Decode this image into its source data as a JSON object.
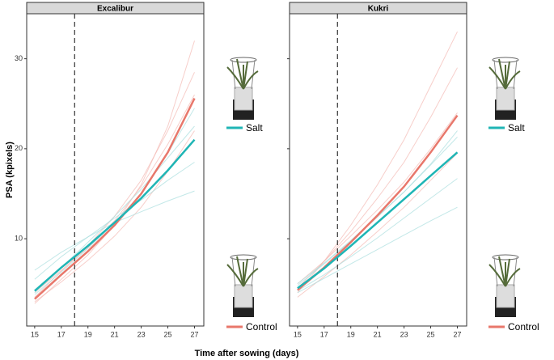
{
  "y_label": "PSA (kpixels)",
  "x_label": "Time after sowing (days)",
  "chart_data": [
    {
      "type": "line",
      "title": "Excalibur",
      "x": [
        15,
        17,
        19,
        21,
        23,
        25,
        27
      ],
      "xlim": [
        14.4,
        27.7
      ],
      "xticks": [
        15,
        17,
        19,
        21,
        23,
        25,
        27
      ],
      "ylim": [
        0.3,
        35
      ],
      "yticks": [
        10,
        20,
        30
      ],
      "vline": 18,
      "series": [
        {
          "name": "Control",
          "color": "#e8776b",
          "values": [
            3.3,
            6.0,
            8.6,
            11.5,
            15.0,
            19.6,
            25.6
          ]
        },
        {
          "name": "Salt",
          "color": "#1fb5b5",
          "values": [
            4.2,
            6.8,
            9.2,
            11.8,
            14.5,
            17.6,
            21.0
          ]
        }
      ],
      "individuals": [
        {
          "color": "#f3b9b3",
          "values": [
            2.8,
            5.5,
            8.2,
            11.5,
            16,
            22.5,
            32
          ]
        },
        {
          "color": "#f3b9b3",
          "values": [
            3.5,
            6.4,
            9.2,
            12.5,
            16.5,
            22,
            28.5
          ]
        },
        {
          "color": "#f3b9b3",
          "values": [
            3.0,
            5.2,
            7.6,
            10.3,
            13.5,
            17.5,
            22
          ]
        },
        {
          "color": "#f3b9b3",
          "values": [
            4.0,
            6.5,
            9.0,
            12.0,
            15.8,
            20.5,
            26
          ]
        },
        {
          "color": "#a9dede",
          "values": [
            5.5,
            8.0,
            10.2,
            12.3,
            14.3,
            16.5,
            18.5
          ]
        },
        {
          "color": "#a9dede",
          "values": [
            4.0,
            6.8,
            9.6,
            12.5,
            15.5,
            19,
            22.5
          ]
        },
        {
          "color": "#a9dede",
          "values": [
            6.5,
            8.5,
            10.2,
            11.8,
            13.0,
            14.2,
            15.3
          ]
        },
        {
          "color": "#a9dede",
          "values": [
            3.8,
            6.3,
            8.9,
            11.8,
            15.0,
            19.5,
            24.5
          ]
        }
      ]
    },
    {
      "type": "line",
      "title": "Kukri",
      "x": [
        15,
        17,
        19,
        21,
        23,
        25,
        27
      ],
      "xlim": [
        14.4,
        27.7
      ],
      "xticks": [
        15,
        17,
        19,
        21,
        23,
        25,
        27
      ],
      "ylim": [
        0.3,
        35
      ],
      "yticks": [
        10,
        20,
        30
      ],
      "vline": 18,
      "series": [
        {
          "name": "Control",
          "color": "#e8776b",
          "values": [
            4.3,
            6.8,
            9.6,
            12.6,
            15.8,
            19.6,
            23.7
          ]
        },
        {
          "name": "Salt",
          "color": "#1fb5b5",
          "values": [
            4.5,
            6.7,
            9.2,
            11.8,
            14.4,
            17.0,
            19.6
          ]
        }
      ],
      "individuals": [
        {
          "color": "#f3b9b3",
          "values": [
            4.0,
            7.5,
            11.5,
            16,
            21,
            27,
            33
          ]
        },
        {
          "color": "#f3b9b3",
          "values": [
            4.5,
            7.5,
            10.8,
            14.5,
            18.5,
            23.5,
            29
          ]
        },
        {
          "color": "#f3b9b3",
          "values": [
            3.5,
            5.8,
            8.2,
            10.8,
            13.5,
            16.5,
            19.5
          ]
        },
        {
          "color": "#f3b9b3",
          "values": [
            5.0,
            7.5,
            10.3,
            13.2,
            16.3,
            20,
            24
          ]
        },
        {
          "color": "#a9dede",
          "values": [
            4.0,
            5.6,
            7.2,
            8.8,
            10.4,
            12.0,
            13.5
          ]
        },
        {
          "color": "#a9dede",
          "values": [
            5.0,
            7.3,
            9.8,
            12.5,
            15.2,
            18.3,
            22
          ]
        },
        {
          "color": "#a9dede",
          "values": [
            4.2,
            6.0,
            8.0,
            10.1,
            12.3,
            14.5,
            16.7
          ]
        },
        {
          "color": "#a9dede",
          "values": [
            4.8,
            7.2,
            9.7,
            12.4,
            15.2,
            18.2,
            21.3
          ]
        }
      ]
    }
  ]
}
